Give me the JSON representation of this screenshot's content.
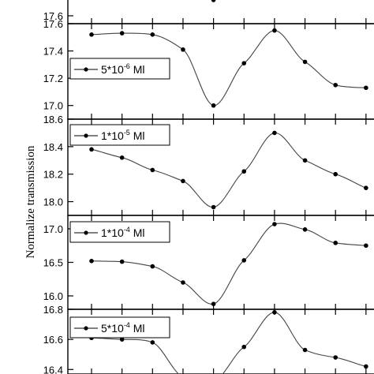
{
  "chart_data": [
    {
      "type": "scatter",
      "panel": "top-partial",
      "ylim": [
        17.55,
        17.9
      ],
      "y_ticks": [
        "17.6"
      ],
      "x": [
        1,
        2,
        3,
        4,
        5,
        6,
        7,
        8,
        9,
        10
      ],
      "points": [
        null,
        null,
        null,
        null,
        17.7,
        null,
        null,
        null,
        null,
        null
      ],
      "fit_line": true
    },
    {
      "type": "scatter",
      "panel": "2",
      "ylim": [
        16.9,
        17.6
      ],
      "y_ticks": [
        "17.0",
        "17.2",
        "17.4",
        "17.6"
      ],
      "legend": {
        "prefix": "5*10",
        "exp": "-6",
        "unit": "Ml",
        "placement": "left"
      },
      "x": [
        1,
        2,
        3,
        4,
        5,
        6,
        7,
        8,
        9,
        10
      ],
      "points": [
        17.52,
        17.53,
        17.52,
        17.41,
        17.0,
        17.31,
        17.55,
        17.32,
        17.15,
        17.13
      ],
      "fit_line": true
    },
    {
      "type": "scatter",
      "panel": "3",
      "ylim": [
        17.9,
        18.6
      ],
      "y_ticks": [
        "18.0",
        "18.2",
        "18.4",
        "18.6"
      ],
      "legend": {
        "prefix": "1*10",
        "exp": "-5",
        "unit": "Ml",
        "placement": "top-left"
      },
      "x": [
        1,
        2,
        3,
        4,
        5,
        6,
        7,
        8,
        9,
        10
      ],
      "points": [
        18.38,
        18.32,
        18.23,
        18.15,
        17.96,
        18.22,
        18.5,
        18.3,
        18.2,
        18.1
      ],
      "fit_line": true
    },
    {
      "type": "scatter",
      "panel": "4",
      "ylim": [
        15.8,
        17.2
      ],
      "y_ticks": [
        "16.0",
        "16.5",
        "17.0"
      ],
      "legend": {
        "prefix": "1*10",
        "exp": "-4",
        "unit": "Ml",
        "placement": "top-left"
      },
      "x": [
        1,
        2,
        3,
        4,
        5,
        6,
        7,
        8,
        9,
        10
      ],
      "points": [
        16.52,
        16.51,
        16.44,
        16.2,
        15.88,
        16.53,
        17.07,
        16.99,
        16.79,
        16.75
      ],
      "fit_line": true
    },
    {
      "type": "scatter",
      "panel": "5-partial",
      "ylim": [
        16.37,
        16.8
      ],
      "y_ticks": [
        "16.4",
        "16.6",
        "16.8"
      ],
      "legend": {
        "prefix": "5*10",
        "exp": "-4",
        "unit": "Ml",
        "placement": "top-left"
      },
      "x": [
        1,
        2,
        3,
        4,
        5,
        6,
        7,
        8,
        9,
        10
      ],
      "points": [
        16.61,
        16.6,
        16.58,
        16.35,
        16.32,
        16.55,
        16.78,
        16.53,
        16.48,
        16.42
      ],
      "fit_line": true
    }
  ],
  "ylabel": "Normalize transmission"
}
